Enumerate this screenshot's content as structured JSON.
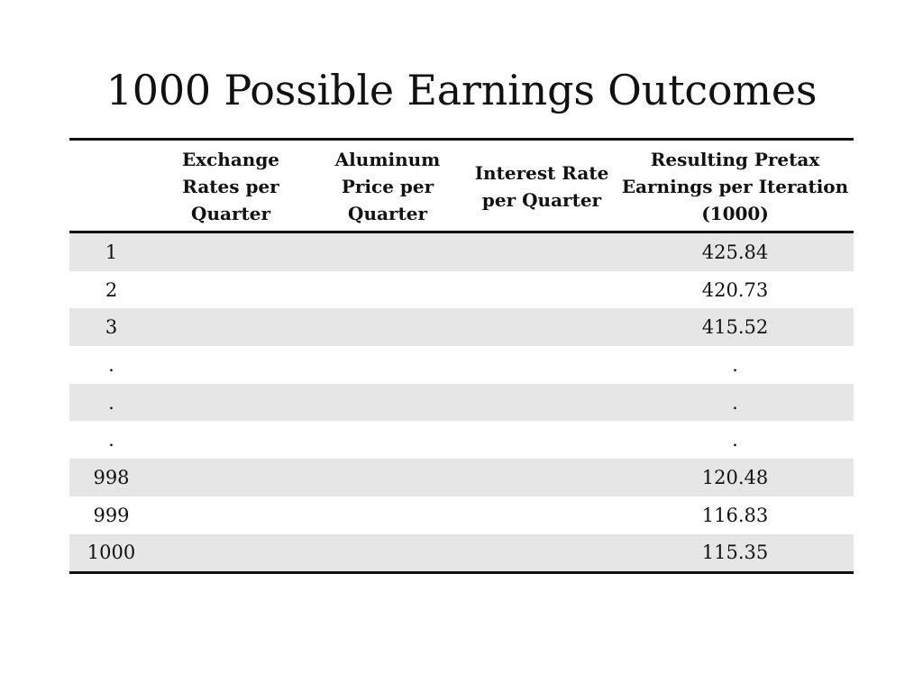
{
  "slide": {
    "title": "1000 Possible Earnings Outcomes"
  },
  "table": {
    "headers": [
      "",
      "Exchange Rates per Quarter",
      "Aluminum Price per Quarter",
      "Interest Rate per Quarter",
      "Resulting Pretax Earnings per Iteration (1000)"
    ],
    "rows": [
      [
        "1",
        "",
        "",
        "",
        "425.84"
      ],
      [
        "2",
        "",
        "",
        "",
        "420.73"
      ],
      [
        "3",
        "",
        "",
        "",
        "415.52"
      ],
      [
        ".",
        "",
        "",
        "",
        "."
      ],
      [
        ".",
        "",
        "",
        "",
        "."
      ],
      [
        ".",
        "",
        "",
        "",
        "."
      ],
      [
        "998",
        "",
        "",
        "",
        "120.48"
      ],
      [
        "999",
        "",
        "",
        "",
        "116.83"
      ],
      [
        "1000",
        "",
        "",
        "",
        "115.35"
      ]
    ]
  },
  "colors": {
    "stripe": "#e6e6e6",
    "rule": "#111111",
    "background": "#ffffff"
  }
}
